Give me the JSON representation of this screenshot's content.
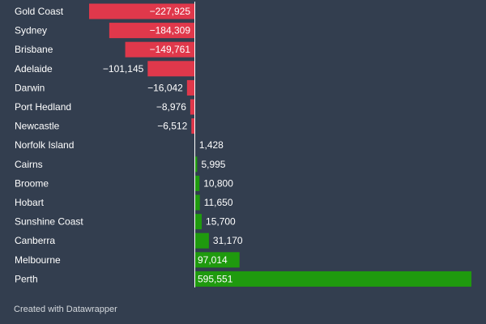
{
  "chart_data": {
    "type": "bar",
    "orientation": "horizontal",
    "categories": [
      "Gold Coast",
      "Sydney",
      "Brisbane",
      "Adelaide",
      "Darwin",
      "Port Hedland",
      "Newcastle",
      "Norfolk Island",
      "Cairns",
      "Broome",
      "Hobart",
      "Sunshine Coast",
      "Canberra",
      "Melbourne",
      "Perth"
    ],
    "values": [
      -227925,
      -184309,
      -149761,
      -101145,
      -16042,
      -8976,
      -6512,
      1428,
      5995,
      10800,
      11650,
      15700,
      31170,
      97014,
      595551
    ],
    "value_labels": [
      "−227,925",
      "−184,309",
      "−149,761",
      "−101,145",
      "−16,042",
      "−8,976",
      "−6,512",
      "1,428",
      "5,995",
      "10,800",
      "11,650",
      "15,700",
      "31,170",
      "97,014",
      "595,551"
    ],
    "xlim": [
      -227925,
      595551
    ],
    "colors": {
      "negative": "#e0384b",
      "positive": "#1f9a0e",
      "label": "#ffffff",
      "axis": "#ffffff"
    }
  },
  "footer": {
    "credit": "Created with Datawrapper"
  }
}
